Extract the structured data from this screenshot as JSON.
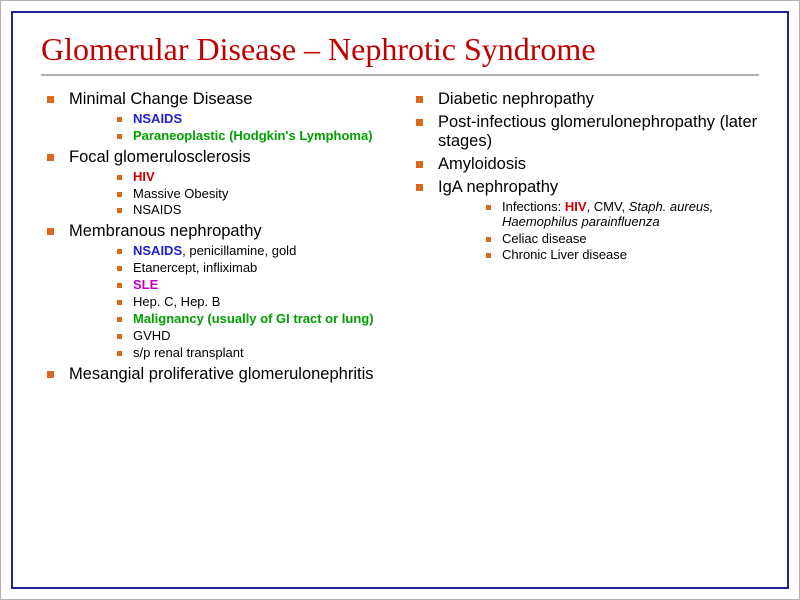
{
  "colors": {
    "title": "#c00000",
    "bullet": "#d86a1a",
    "text": "#000000",
    "blue": "#2020d0",
    "green": "#00a000",
    "red": "#d00000",
    "magenta": "#c000c0",
    "border": "#2020a0"
  },
  "title": "Glomerular Disease – Nephrotic Syndrome",
  "left": [
    {
      "text": "Minimal Change Disease",
      "sub": [
        {
          "segs": [
            {
              "t": "NSAIDS",
              "c": "blue",
              "b": true
            }
          ]
        },
        {
          "segs": [
            {
              "t": "Paraneoplastic (Hodgkin's Lymphoma)",
              "c": "green",
              "b": true
            }
          ]
        }
      ]
    },
    {
      "text": "Focal glomerulosclerosis",
      "sub": [
        {
          "segs": [
            {
              "t": "HIV",
              "c": "red",
              "b": true
            }
          ]
        },
        {
          "segs": [
            {
              "t": "Massive Obesity",
              "c": "text"
            }
          ]
        },
        {
          "segs": [
            {
              "t": "NSAIDS",
              "c": "text"
            }
          ]
        }
      ]
    },
    {
      "text": "Membranous nephropathy",
      "sub": [
        {
          "segs": [
            {
              "t": "NSAIDS",
              "c": "blue",
              "b": true
            },
            {
              "t": ", penicillamine, gold",
              "c": "text"
            }
          ]
        },
        {
          "segs": [
            {
              "t": "Etanercept, infliximab",
              "c": "text"
            }
          ]
        },
        {
          "segs": [
            {
              "t": "SLE",
              "c": "magenta",
              "b": true
            }
          ]
        },
        {
          "segs": [
            {
              "t": "Hep. C, Hep. B",
              "c": "text"
            }
          ]
        },
        {
          "segs": [
            {
              "t": "Malignancy (usually of GI tract or lung)",
              "c": "green",
              "b": true
            }
          ]
        },
        {
          "segs": [
            {
              "t": "GVHD",
              "c": "text"
            }
          ]
        },
        {
          "segs": [
            {
              "t": "s/p renal transplant",
              "c": "text"
            }
          ]
        }
      ]
    },
    {
      "text": "Mesangial proliferative glomerulonephritis",
      "sub": []
    }
  ],
  "right": [
    {
      "text": "Diabetic nephropathy",
      "sub": []
    },
    {
      "text": "Post-infectious glomerulonephropathy (later stages)",
      "sub": []
    },
    {
      "text": "Amyloidosis",
      "sub": []
    },
    {
      "text": "IgA nephropathy",
      "sub": [
        {
          "segs": [
            {
              "t": "Infections: ",
              "c": "text"
            },
            {
              "t": "HIV",
              "c": "red",
              "b": true
            },
            {
              "t": ", CMV, ",
              "c": "text"
            },
            {
              "t": "Staph. aureus, Haemophilus parainfluenza",
              "c": "text",
              "i": true
            }
          ]
        },
        {
          "segs": [
            {
              "t": "Celiac disease",
              "c": "text"
            }
          ]
        },
        {
          "segs": [
            {
              "t": "Chronic Liver disease",
              "c": "text"
            }
          ]
        }
      ]
    }
  ]
}
